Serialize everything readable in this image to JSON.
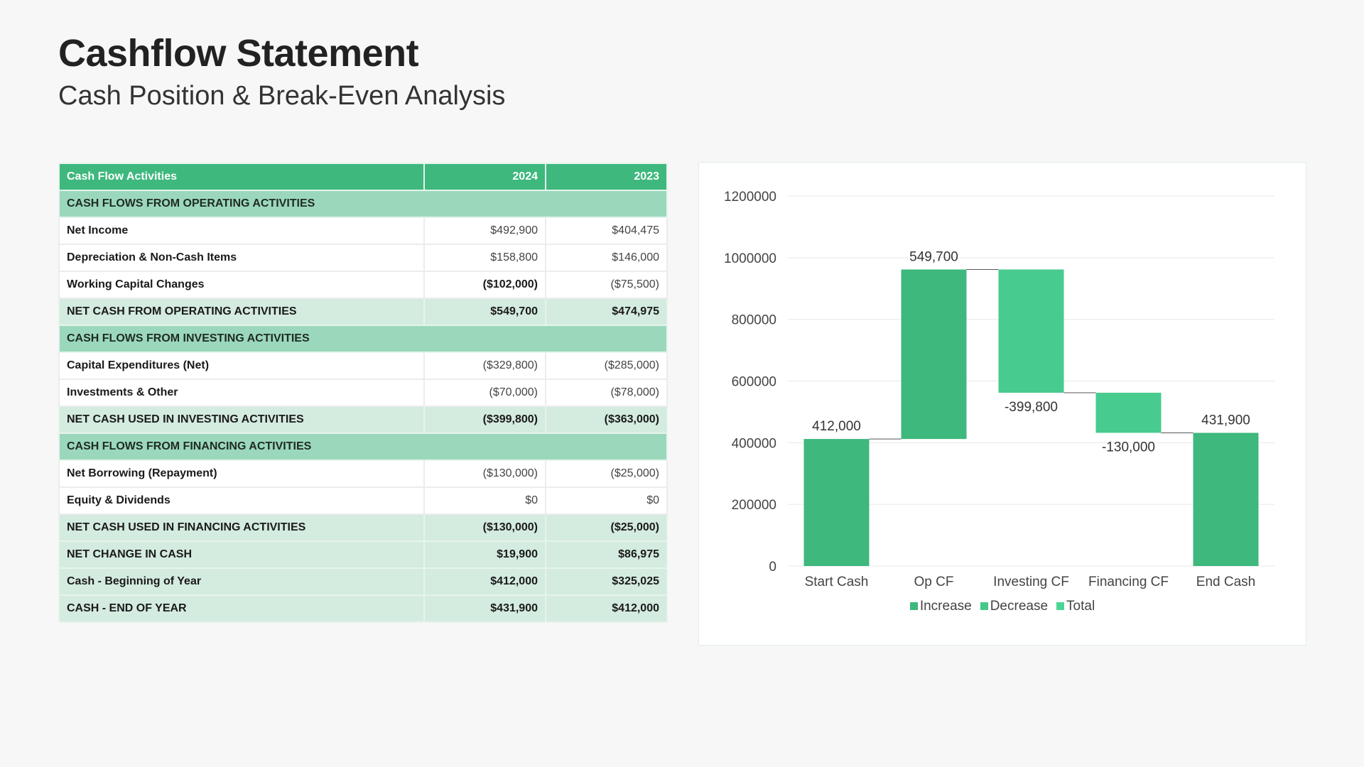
{
  "page": {
    "title": "Cashflow Statement",
    "subtitle": "Cash Position & Break-Even Analysis"
  },
  "table": {
    "headers": [
      "Cash Flow Activities",
      "2024",
      "2023"
    ],
    "rows": [
      {
        "type": "section",
        "label": "CASH FLOWS FROM OPERATING ACTIVITIES"
      },
      {
        "type": "item",
        "label": "Net Income",
        "y2024": "$492,900",
        "y2023": "$404,475"
      },
      {
        "type": "item",
        "label": "Depreciation & Non-Cash Items",
        "y2024": "$158,800",
        "y2023": "$146,000"
      },
      {
        "type": "item",
        "label": "Working Capital Changes",
        "y2024": "($102,000)",
        "y2023": "($75,500)",
        "bold2024": true
      },
      {
        "type": "total",
        "label": "NET CASH FROM OPERATING ACTIVITIES",
        "y2024": "$549,700",
        "y2023": "$474,975"
      },
      {
        "type": "section",
        "label": "CASH FLOWS FROM INVESTING ACTIVITIES"
      },
      {
        "type": "item",
        "label": "Capital Expenditures (Net)",
        "y2024": "($329,800)",
        "y2023": "($285,000)"
      },
      {
        "type": "item",
        "label": "Investments & Other",
        "y2024": "($70,000)",
        "y2023": "($78,000)"
      },
      {
        "type": "total",
        "label": "NET CASH USED IN INVESTING ACTIVITIES",
        "y2024": "($399,800)",
        "y2023": "($363,000)"
      },
      {
        "type": "section",
        "label": "CASH FLOWS FROM FINANCING ACTIVITIES"
      },
      {
        "type": "item",
        "label": "Net Borrowing (Repayment)",
        "y2024": "($130,000)",
        "y2023": "($25,000)"
      },
      {
        "type": "item",
        "label": "Equity & Dividends",
        "y2024": "$0",
        "y2023": "$0"
      },
      {
        "type": "total",
        "label": "NET CASH USED IN FINANCING ACTIVITIES",
        "y2024": "($130,000)",
        "y2023": "($25,000)"
      },
      {
        "type": "total",
        "label": "NET CHANGE IN CASH",
        "y2024": "$19,900",
        "y2023": "$86,975"
      },
      {
        "type": "total",
        "label": "Cash - Beginning of Year",
        "y2024": "$412,000",
        "y2023": "$325,025"
      },
      {
        "type": "total",
        "label": "CASH - END OF YEAR",
        "y2024": "$431,900",
        "y2023": "$412,000"
      }
    ]
  },
  "chart_data": {
    "type": "bar",
    "subtype": "waterfall",
    "title": "",
    "xlabel": "",
    "ylabel": "",
    "categories": [
      "Start Cash",
      "Op CF",
      "Investing CF",
      "Financing CF",
      "End Cash"
    ],
    "steps": [
      {
        "category": "Start Cash",
        "base": 0,
        "value": 412000,
        "kind": "Increase",
        "label": "412,000",
        "label_pos": "above"
      },
      {
        "category": "Op CF",
        "base": 412000,
        "value": 549700,
        "kind": "Increase",
        "label": "549,700",
        "label_pos": "above"
      },
      {
        "category": "Investing CF",
        "base": 961700,
        "value": -399800,
        "kind": "Decrease",
        "label": "-399,800",
        "label_pos": "below"
      },
      {
        "category": "Financing CF",
        "base": 561900,
        "value": -130000,
        "kind": "Decrease",
        "label": "-130,000",
        "label_pos": "below"
      },
      {
        "category": "End Cash",
        "base": 0,
        "value": 431900,
        "kind": "Increase",
        "label": "431,900",
        "label_pos": "above"
      }
    ],
    "ylim": [
      0,
      1200000
    ],
    "yticks": [
      0,
      200000,
      400000,
      600000,
      800000,
      1000000,
      1200000
    ],
    "grid": true,
    "legend": {
      "position": "bottom",
      "entries": [
        {
          "name": "Increase",
          "color": "#3eb87d"
        },
        {
          "name": "Decrease",
          "color": "#45c78a"
        },
        {
          "name": "Total",
          "color": "#4dd494"
        }
      ]
    },
    "colors": {
      "Increase": "#3eb87d",
      "Decrease": "#48cb8e",
      "connector": "#555555",
      "grid": "#e8e8e8"
    }
  }
}
